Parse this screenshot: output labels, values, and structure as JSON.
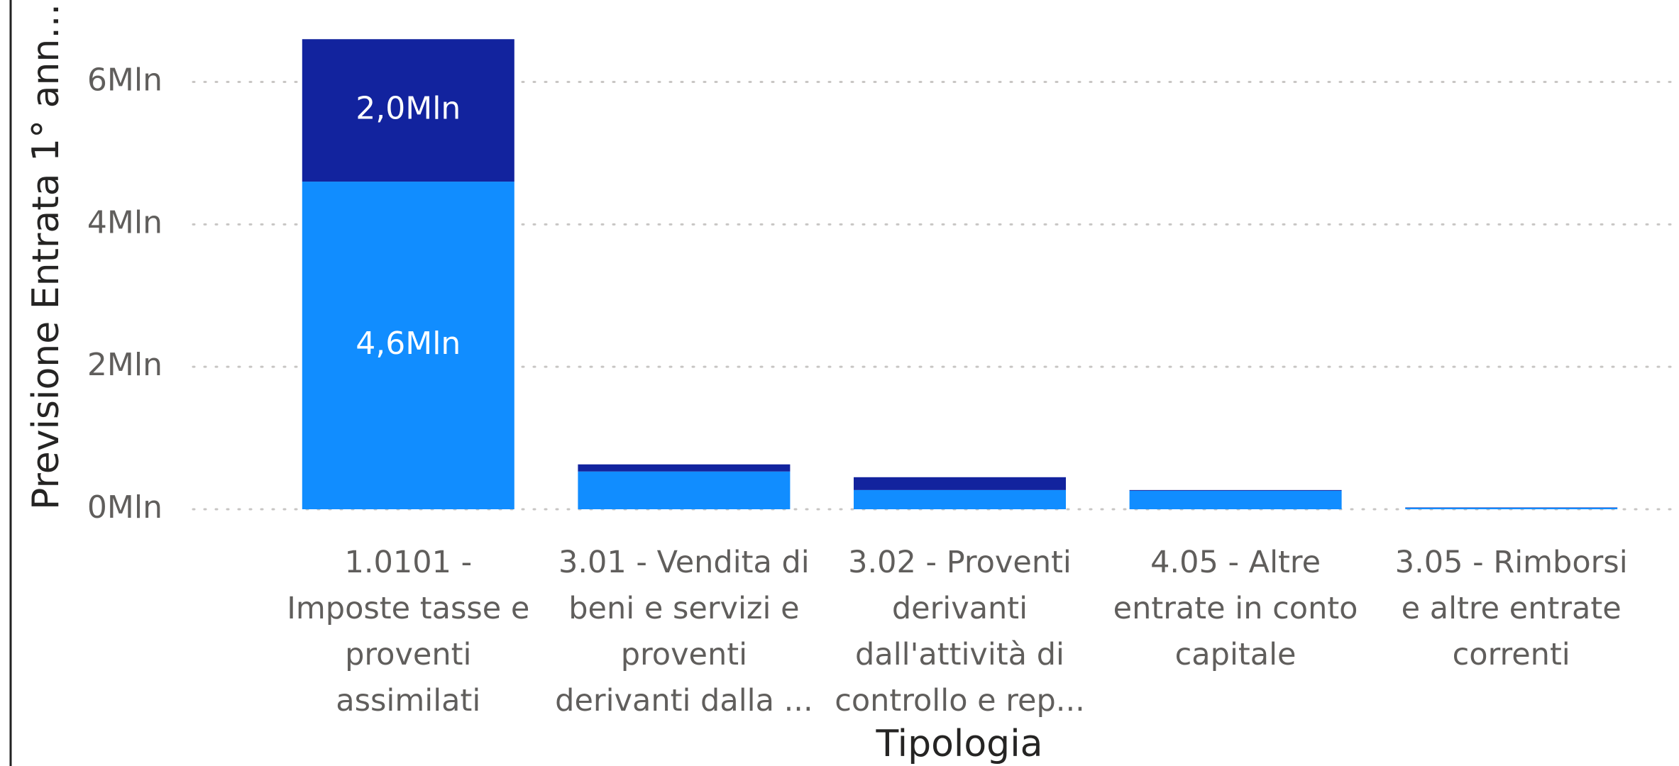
{
  "chart_data": {
    "type": "stacked_bar",
    "y_axis_title": "Previsione Entrata 1° ann...",
    "x_axis_title": "Tipologia",
    "categories": [
      "1.0101 - Imposte tasse e proventi assimilati",
      "3.01 - Vendita di beni e servizi e proventi derivanti dalla ...",
      "3.02 - Proventi derivanti dall'attività di controllo e rep...",
      "4.05 - Altre entrate in conto capitale",
      "3.05 - Rimborsi e altre entrate correnti"
    ],
    "series": [
      {
        "color": "#118DFF",
        "values": [
          4.6,
          0.53,
          0.27,
          0.26,
          0.02
        ],
        "value_labels": [
          "4,6Mln",
          null,
          null,
          null,
          null
        ]
      },
      {
        "color": "#12239E",
        "values": [
          2.0,
          0.1,
          0.18,
          0.01,
          0.005
        ],
        "value_labels": [
          "2,0Mln",
          null,
          null,
          null,
          null
        ]
      }
    ],
    "ylim": [
      0,
      7.15
    ],
    "yticks": [
      {
        "value": 0,
        "label": "0Mln"
      },
      {
        "value": 2,
        "label": "2Mln"
      },
      {
        "value": 4,
        "label": "4Mln"
      },
      {
        "value": 6,
        "label": "6Mln"
      }
    ],
    "grid": true
  }
}
